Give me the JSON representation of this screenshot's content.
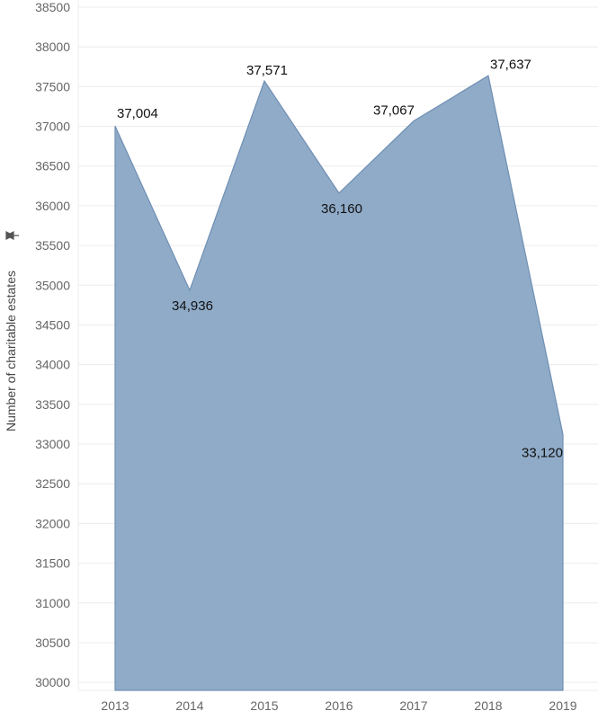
{
  "chart_data": {
    "type": "area",
    "categories": [
      "2013",
      "2014",
      "2015",
      "2016",
      "2017",
      "2018",
      "2019"
    ],
    "values": [
      37004,
      34936,
      37571,
      36160,
      37067,
      37637,
      33120
    ],
    "data_labels": [
      "37,004",
      "34,936",
      "37,571",
      "36,160",
      "37,067",
      "37,637",
      "33,120"
    ],
    "ylabel": "Number of charitable estates",
    "ylim": [
      29900,
      38500
    ],
    "yticks": [
      30000,
      30500,
      31000,
      31500,
      32000,
      32500,
      33000,
      33500,
      34000,
      34500,
      35000,
      35500,
      36000,
      36500,
      37000,
      37500,
      38000,
      38500
    ],
    "grid": true,
    "fill_color": "#8fabc8",
    "line_color": "#6f8fb3"
  }
}
